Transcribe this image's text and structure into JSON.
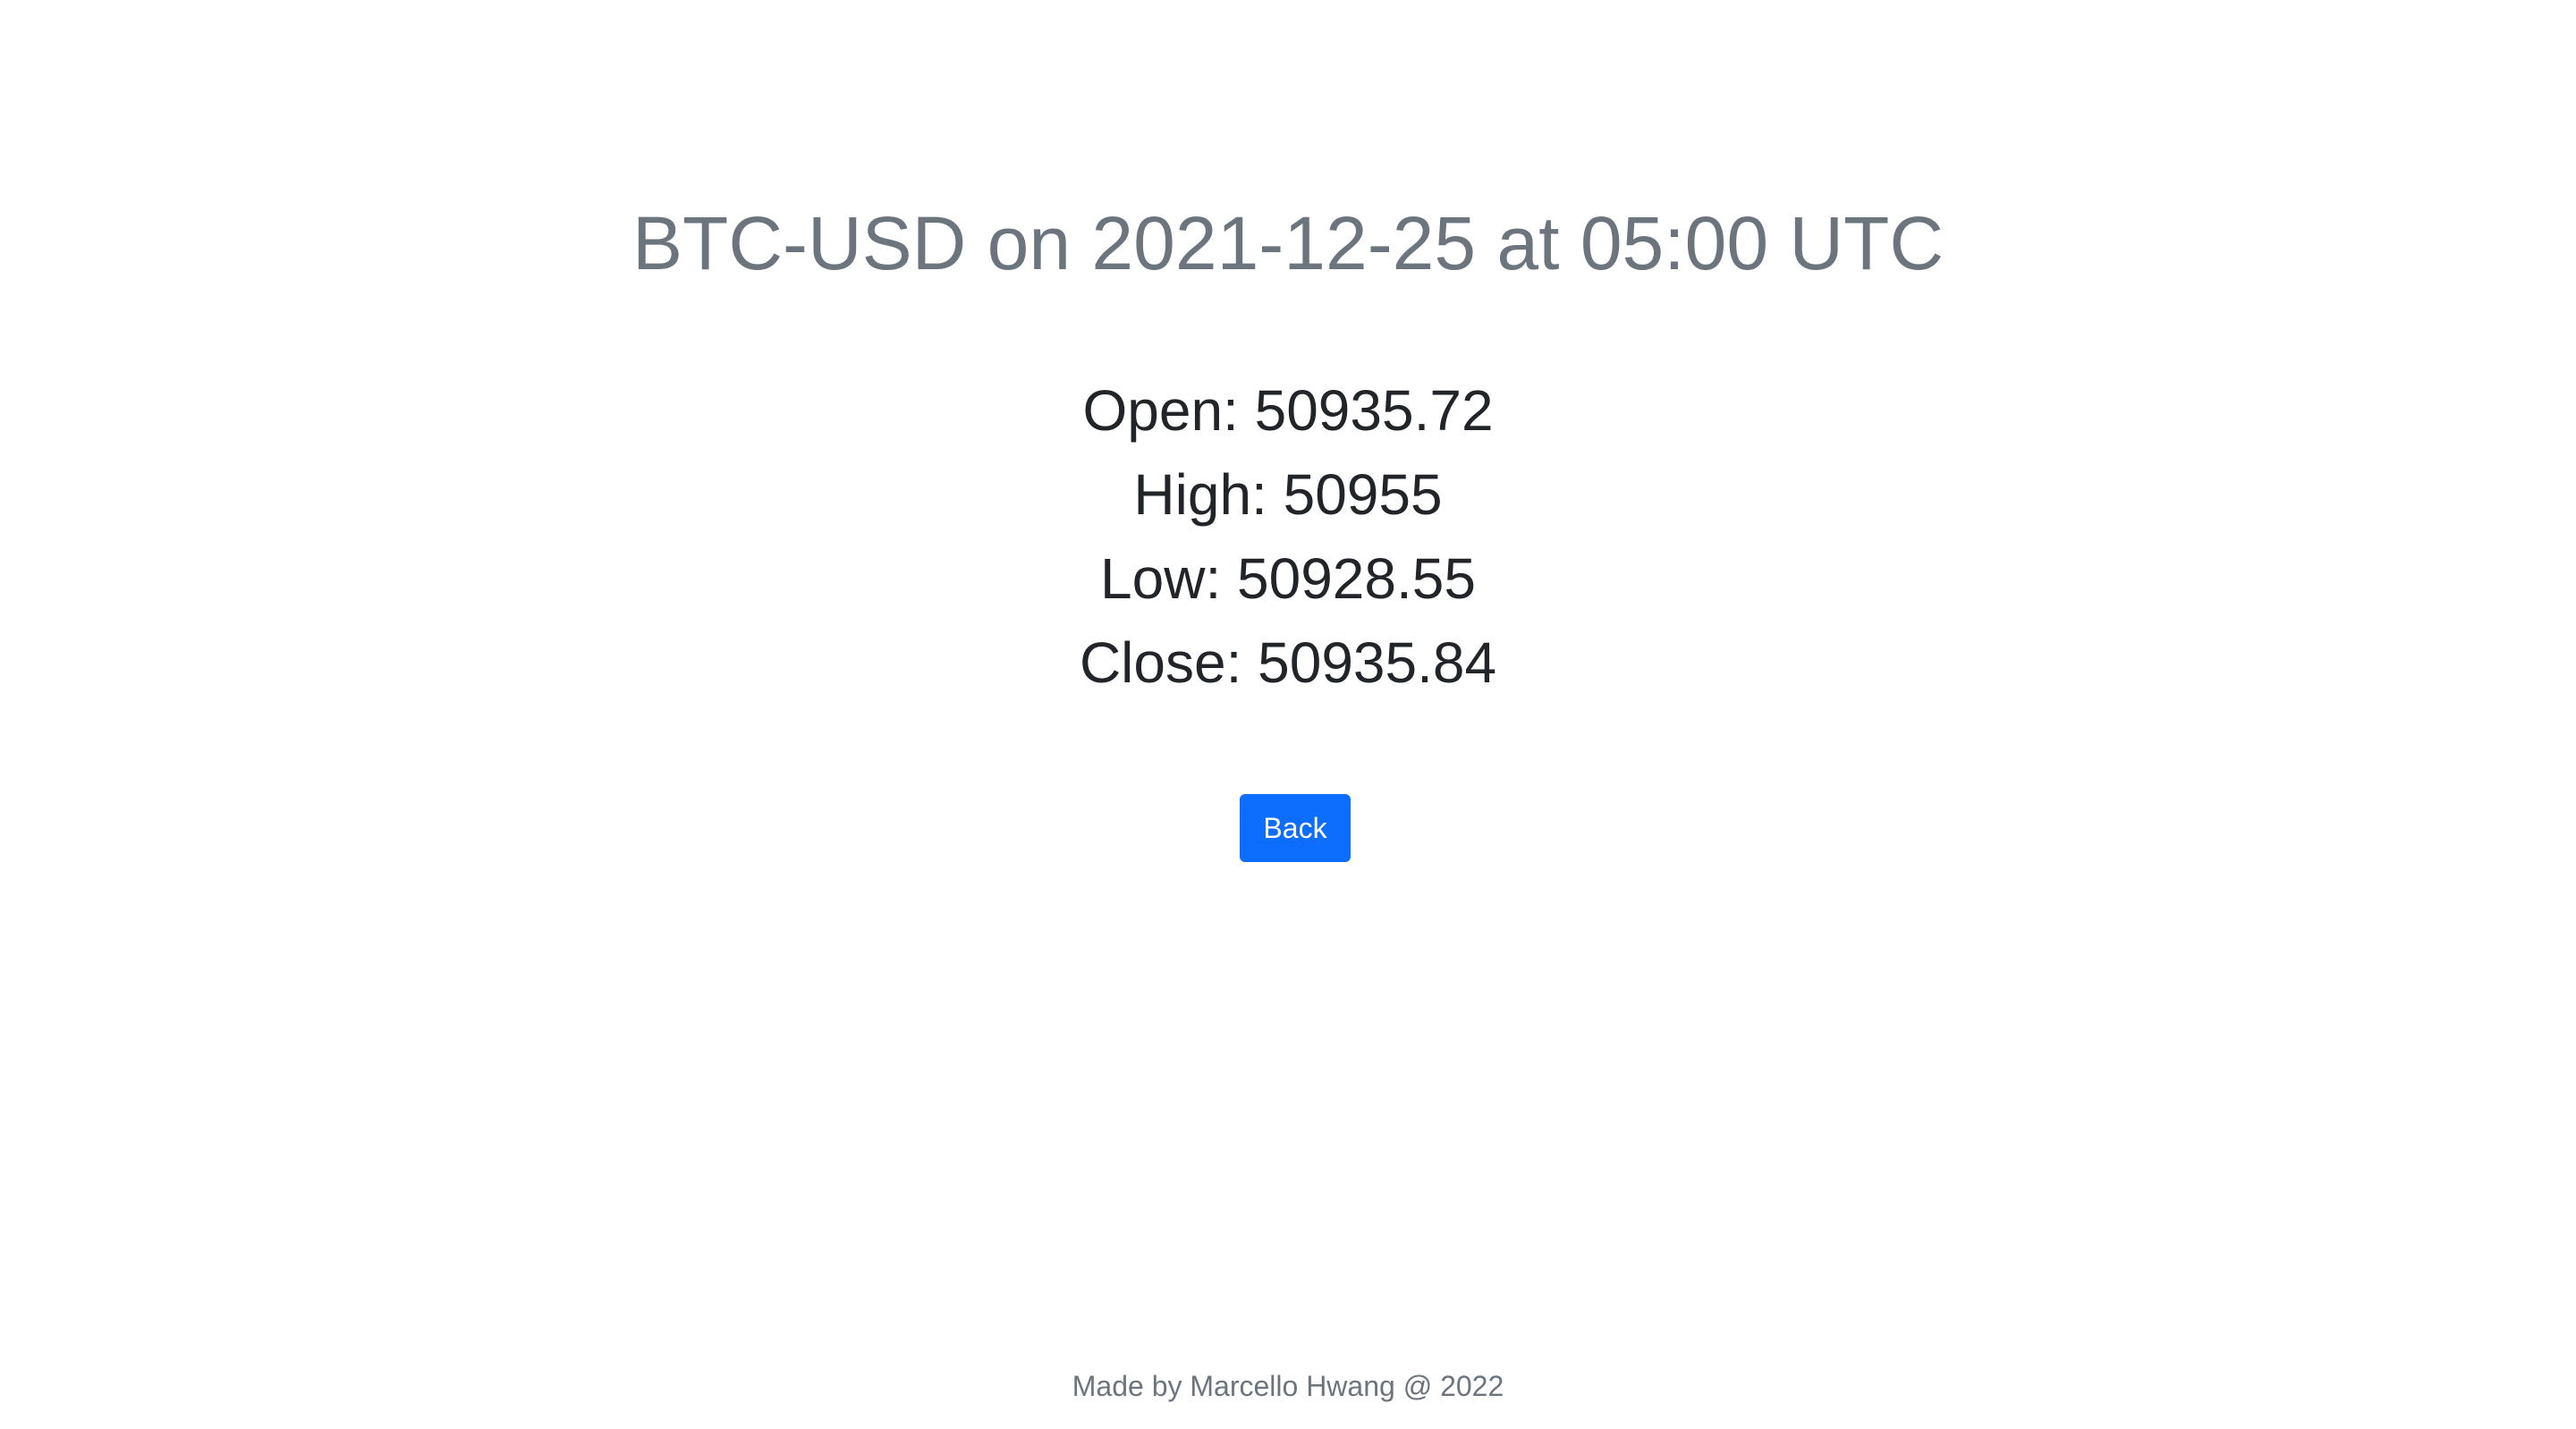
{
  "header": {
    "title": "BTC-USD on 2021-12-25 at 05:00 UTC"
  },
  "prices": [
    {
      "text": "Open: 50935.72"
    },
    {
      "text": "High: 50955"
    },
    {
      "text": "Low: 50928.55"
    },
    {
      "text": "Close: 50935.84"
    }
  ],
  "actions": {
    "back_label": "Back"
  },
  "footer": {
    "text": "Made by Marcello Hwang @ 2022"
  },
  "colors": {
    "title": "#6c757d",
    "text": "#212529",
    "button": "#0d6efd",
    "button_text": "#ffffff",
    "footer": "#6c757d"
  }
}
